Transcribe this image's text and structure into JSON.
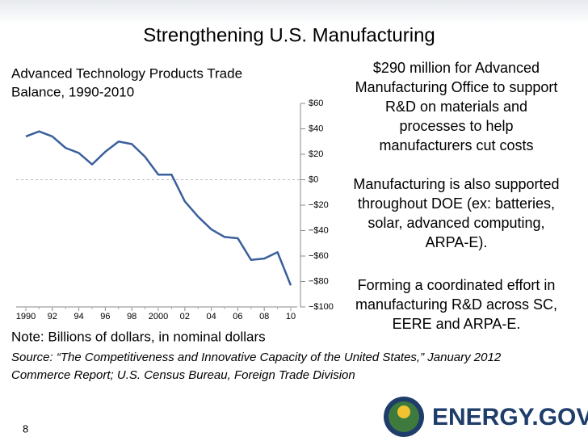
{
  "slide": {
    "title": "Strengthening U.S. Manufacturing",
    "points": [
      [
        "$290 million for Advanced",
        "Manufacturing Office to support",
        "R&D on materials and",
        "processes to help",
        "manufacturers cut costs"
      ],
      [
        "Manufacturing is also supported",
        "throughout DOE (ex: batteries,",
        "solar, advanced computing,",
        "ARPA-E)."
      ],
      [
        "Forming a coordinated effort in",
        "manufacturing R&D across SC,",
        "EERE and ARPA-E."
      ]
    ],
    "note": "Note: Billions of dollars, in nominal dollars",
    "source": [
      "Source: “The Competitiveness and Innovative Capacity of the United States,” January 2012",
      "Commerce Report; U.S. Census Bureau, Foreign Trade Division"
    ],
    "page_number": "8",
    "logo": "ENERGY.GOV"
  },
  "chart_data": {
    "type": "line",
    "title": [
      "Advanced Technology Products Trade",
      "Balance, 1990-2010"
    ],
    "x": [
      1990,
      1991,
      1992,
      1993,
      1994,
      1995,
      1996,
      1997,
      1998,
      1999,
      2000,
      2001,
      2002,
      2003,
      2004,
      2005,
      2006,
      2007,
      2008,
      2009,
      2010
    ],
    "series": [
      {
        "color": "#3b5f9c",
        "values": [
          34,
          38,
          34,
          25,
          21,
          12,
          22,
          30,
          28,
          18,
          4,
          4,
          -17,
          -29,
          -39,
          -45,
          -46,
          -63,
          -62,
          -57,
          -83
        ]
      }
    ],
    "xlim": [
      1989.8,
      2010.8
    ],
    "xticks": [
      1990,
      {
        "value": 1992,
        "label": "92"
      },
      {
        "value": 1994,
        "label": "94"
      },
      {
        "value": 1996,
        "label": "96"
      },
      {
        "value": 1998,
        "label": "98"
      },
      2000,
      {
        "value": 2002,
        "label": "02"
      },
      {
        "value": 2004,
        "label": "04"
      },
      {
        "value": 2006,
        "label": "06"
      },
      {
        "value": 2008,
        "label": "08"
      },
      {
        "value": 2010,
        "label": "10"
      }
    ],
    "ylim": [
      -100,
      60
    ],
    "yticks": [
      {
        "value": 60,
        "label": "$60"
      },
      {
        "value": 40,
        "label": "$40"
      },
      {
        "value": 20,
        "label": "$20"
      },
      {
        "value": 0,
        "label": "$0"
      },
      {
        "value": -20,
        "label": "−$20"
      },
      {
        "value": -40,
        "label": "−$40"
      },
      {
        "value": -60,
        "label": "−$60"
      },
      {
        "value": -80,
        "label": "−$80"
      },
      {
        "value": -100,
        "label": "−$100"
      }
    ],
    "zero_line": true
  }
}
